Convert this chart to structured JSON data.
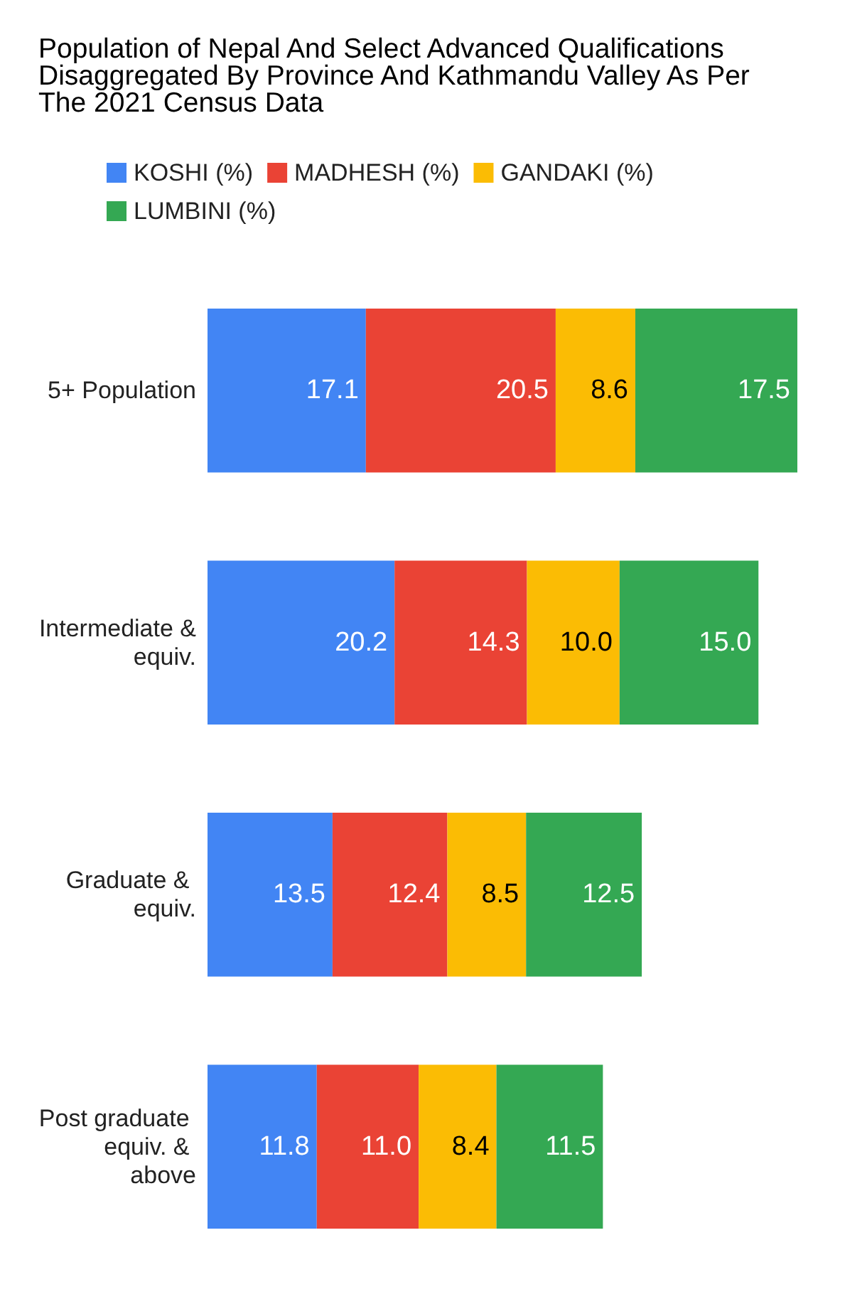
{
  "chart_data": {
    "type": "bar",
    "orientation": "horizontal",
    "stacked": true,
    "legend": "top",
    "title": "Population of Nepal And Select Advanced Qualifications Disaggregated By Province And Kathmandu Valley As Per The 2021 Census Data",
    "categories": [
      "5+ Population",
      "Intermediate & equiv.",
      "Graduate & equiv.",
      "Post graduate equiv. & above"
    ],
    "series": [
      {
        "name": "KOSHI (%)",
        "color": "#4285f4",
        "values": [
          17.1,
          20.2,
          13.5,
          11.8
        ],
        "value_labels": [
          "17.1",
          "20.2",
          "13.5",
          "11.8"
        ]
      },
      {
        "name": "MADHESH (%)",
        "color": "#ea4335",
        "values": [
          20.5,
          14.3,
          12.4,
          11.0
        ],
        "value_labels": [
          "20.5",
          "14.3",
          "12.4",
          "11.0"
        ]
      },
      {
        "name": "GANDAKI (%)",
        "color": "#fbbc04",
        "values": [
          8.6,
          10.0,
          8.5,
          8.4
        ],
        "value_labels": [
          "8.6",
          "10.0",
          "8.5",
          "8.4"
        ]
      },
      {
        "name": "LUMBINI (%)",
        "color": "#34a853",
        "values": [
          17.5,
          15.0,
          12.5,
          11.5
        ],
        "value_labels": [
          "17.5",
          "15.0",
          "12.5",
          "11.5"
        ]
      }
    ]
  }
}
